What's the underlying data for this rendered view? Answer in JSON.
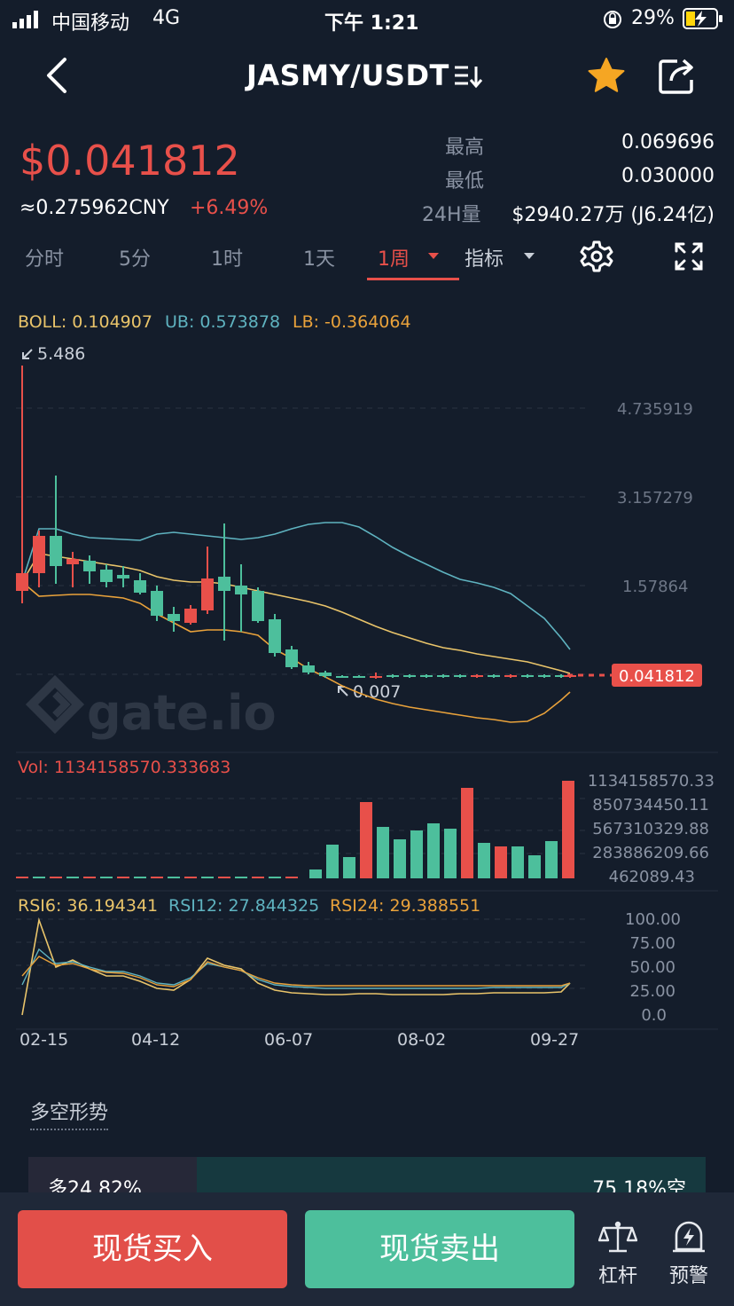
{
  "status_bar": {
    "carrier": "中国移动",
    "network": "4G",
    "time": "下午 1:21",
    "battery": "29%"
  },
  "nav": {
    "title": "JASMY/USDT"
  },
  "price": {
    "main": "$0.041812",
    "cny": "≈0.275962CNY",
    "change": "+6.49%",
    "high_label": "最高",
    "high_value": "0.069696",
    "low_label": "最低",
    "low_value": "0.030000",
    "vol_label": "24H量",
    "vol_value": "$2940.27万 (J6.24亿)"
  },
  "tabs": {
    "items": [
      "分时",
      "5分",
      "1时",
      "1天",
      "1周"
    ],
    "active": "1周",
    "indicator": "指标"
  },
  "chart": {
    "boll_label": "BOLL: 0.104907",
    "ub_label": "UB: 0.573878",
    "lb_label": "LB: -0.364064",
    "max_marker": "5.486",
    "min_marker": "0.007",
    "price_ticks": [
      "4.735919",
      "3.157279",
      "1.57864"
    ],
    "current_price": "0.041812",
    "watermark": "gate.io",
    "vol_label": "Vol: 1134158570.333683",
    "vol_ticks": [
      "1134158570.33",
      "850734450.11",
      "567310329.88",
      "283886209.66",
      "462089.43"
    ],
    "rsi6": "RSI6: 36.194341",
    "rsi12": "RSI12: 27.844325",
    "rsi24": "RSI24: 29.388551",
    "rsi_ticks": [
      "100.00",
      "75.00",
      "50.00",
      "25.00",
      "0.0"
    ],
    "dates": [
      "02-15",
      "04-12",
      "06-07",
      "08-02",
      "09-27"
    ]
  },
  "sentiment": {
    "title": "多空形势",
    "long_label": "多24.82%",
    "short_label": "75.18%空",
    "long_fraction": 0.2482
  },
  "bottom": {
    "buy_label": "现货买入",
    "sell_label": "现货卖出",
    "leverage_label": "杠杆",
    "alert_label": "预警"
  },
  "colors": {
    "up": "#e8504a",
    "down": "#4dbf9c",
    "boll_mid": "#e9c46a",
    "boll_band": "#5fb3c0",
    "background": "#141d2b"
  }
}
